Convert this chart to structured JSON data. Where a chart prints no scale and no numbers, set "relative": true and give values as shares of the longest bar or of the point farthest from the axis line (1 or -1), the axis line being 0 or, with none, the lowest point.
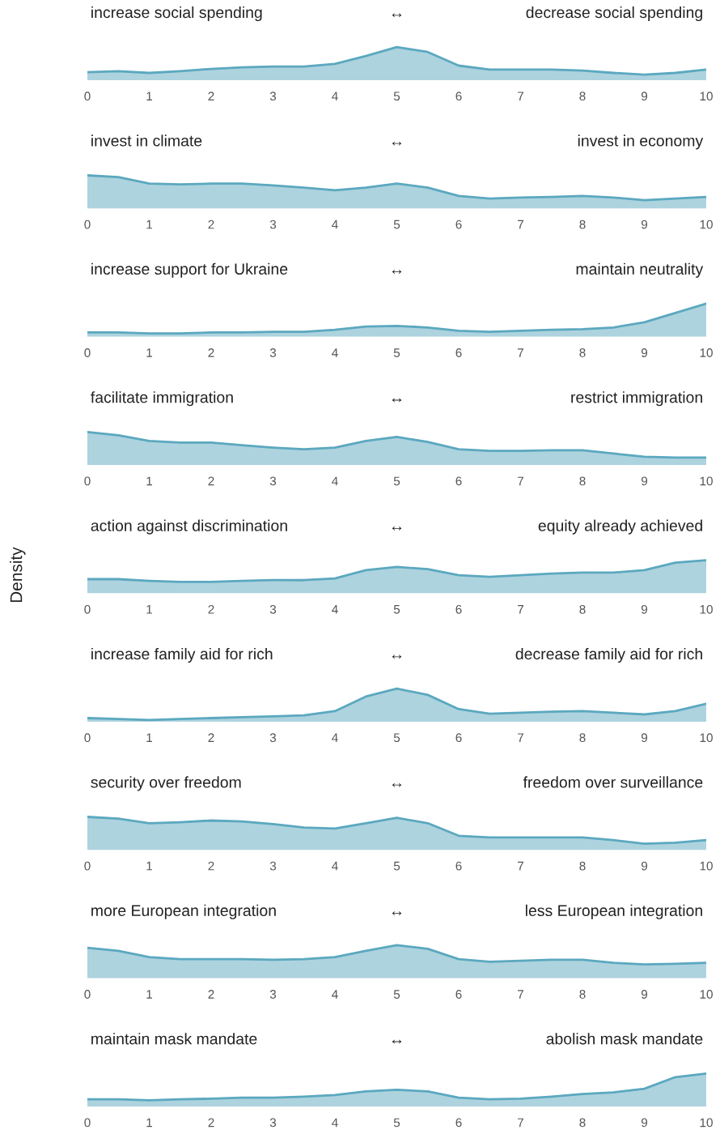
{
  "chart_data": [
    {
      "type": "area",
      "relative": true,
      "annotations": [
        "increase social spending",
        "↔",
        "decrease social spending"
      ],
      "x": [
        0,
        0.5,
        1,
        1.5,
        2,
        2.5,
        3,
        3.5,
        4,
        4.5,
        5,
        5.5,
        6,
        6.5,
        7,
        7.5,
        8,
        8.5,
        9,
        9.5,
        10
      ],
      "xlim": [
        0,
        10
      ],
      "xticks": [
        0,
        1,
        2,
        3,
        4,
        5,
        6,
        7,
        8,
        9,
        10
      ],
      "series": [
        {
          "color": "#5ba8bf",
          "values": [
            0.24,
            0.27,
            0.22,
            0.27,
            0.34,
            0.39,
            0.41,
            0.41,
            0.49,
            0.73,
            1,
            0.85,
            0.44,
            0.32,
            0.32,
            0.32,
            0.29,
            0.22,
            0.17,
            0.22,
            0.32
          ]
        }
      ]
    },
    {
      "type": "area",
      "relative": true,
      "annotations": [
        "invest in climate",
        "↔",
        "invest in economy"
      ],
      "x": [
        0,
        0.5,
        1,
        1.5,
        2,
        2.5,
        3,
        3.5,
        4,
        4.5,
        5,
        5.5,
        6,
        6.5,
        7,
        7.5,
        8,
        8.5,
        9,
        9.5,
        10
      ],
      "xlim": [
        0,
        10
      ],
      "xticks": [
        0,
        1,
        2,
        3,
        4,
        5,
        6,
        7,
        8,
        9,
        10
      ],
      "series": [
        {
          "color": "#5ba8bf",
          "values": [
            1,
            0.95,
            0.75,
            0.73,
            0.75,
            0.75,
            0.7,
            0.63,
            0.55,
            0.63,
            0.75,
            0.63,
            0.38,
            0.3,
            0.33,
            0.35,
            0.38,
            0.33,
            0.25,
            0.3,
            0.35
          ]
        }
      ]
    },
    {
      "type": "area",
      "relative": true,
      "annotations": [
        "increase support for Ukraine",
        "↔",
        "maintain neutrality"
      ],
      "x": [
        0,
        0.5,
        1,
        1.5,
        2,
        2.5,
        3,
        3.5,
        4,
        4.5,
        5,
        5.5,
        6,
        6.5,
        7,
        7.5,
        8,
        8.5,
        9,
        9.5,
        10
      ],
      "xlim": [
        0,
        10
      ],
      "xticks": [
        0,
        1,
        2,
        3,
        4,
        5,
        6,
        7,
        8,
        9,
        10
      ],
      "series": [
        {
          "color": "#5ba8bf",
          "values": [
            0.13,
            0.13,
            0.1,
            0.1,
            0.13,
            0.13,
            0.15,
            0.15,
            0.21,
            0.31,
            0.33,
            0.28,
            0.18,
            0.15,
            0.18,
            0.21,
            0.23,
            0.28,
            0.44,
            0.72,
            1
          ]
        }
      ]
    },
    {
      "type": "area",
      "relative": true,
      "annotations": [
        "facilitate immigration",
        "↔",
        "restrict immigration"
      ],
      "x": [
        0,
        0.5,
        1,
        1.5,
        2,
        2.5,
        3,
        3.5,
        4,
        4.5,
        5,
        5.5,
        6,
        6.5,
        7,
        7.5,
        8,
        8.5,
        9,
        9.5,
        10
      ],
      "xlim": [
        0,
        10
      ],
      "xticks": [
        0,
        1,
        2,
        3,
        4,
        5,
        6,
        7,
        8,
        9,
        10
      ],
      "series": [
        {
          "color": "#5ba8bf",
          "values": [
            1,
            0.9,
            0.73,
            0.68,
            0.68,
            0.6,
            0.53,
            0.48,
            0.53,
            0.73,
            0.85,
            0.7,
            0.48,
            0.43,
            0.43,
            0.45,
            0.45,
            0.35,
            0.25,
            0.23,
            0.23
          ]
        }
      ]
    },
    {
      "type": "area",
      "relative": true,
      "ylabel": "Density",
      "annotations": [
        "action against discrimination",
        "↔",
        "equity already achieved"
      ],
      "x": [
        0,
        0.5,
        1,
        1.5,
        2,
        2.5,
        3,
        3.5,
        4,
        4.5,
        5,
        5.5,
        6,
        6.5,
        7,
        7.5,
        8,
        8.5,
        9,
        9.5,
        10
      ],
      "xlim": [
        0,
        10
      ],
      "xticks": [
        0,
        1,
        2,
        3,
        4,
        5,
        6,
        7,
        8,
        9,
        10
      ],
      "series": [
        {
          "color": "#5ba8bf",
          "values": [
            0.43,
            0.43,
            0.38,
            0.35,
            0.35,
            0.38,
            0.4,
            0.4,
            0.45,
            0.7,
            0.8,
            0.73,
            0.55,
            0.5,
            0.55,
            0.6,
            0.63,
            0.63,
            0.7,
            0.93,
            1
          ]
        }
      ]
    },
    {
      "type": "area",
      "relative": true,
      "annotations": [
        "increase family aid for rich",
        "↔",
        "decrease family aid for rich"
      ],
      "x": [
        0,
        0.5,
        1,
        1.5,
        2,
        2.5,
        3,
        3.5,
        4,
        4.5,
        5,
        5.5,
        6,
        6.5,
        7,
        7.5,
        8,
        8.5,
        9,
        9.5,
        10
      ],
      "xlim": [
        0,
        10
      ],
      "xticks": [
        0,
        1,
        2,
        3,
        4,
        5,
        6,
        7,
        8,
        9,
        10
      ],
      "series": [
        {
          "color": "#5ba8bf",
          "values": [
            0.11,
            0.08,
            0.05,
            0.08,
            0.11,
            0.14,
            0.16,
            0.19,
            0.32,
            0.76,
            1,
            0.81,
            0.38,
            0.24,
            0.27,
            0.3,
            0.32,
            0.27,
            0.22,
            0.32,
            0.54
          ]
        }
      ]
    },
    {
      "type": "area",
      "relative": true,
      "annotations": [
        "security over freedom",
        "↔",
        "freedom over surveillance"
      ],
      "x": [
        0,
        0.5,
        1,
        1.5,
        2,
        2.5,
        3,
        3.5,
        4,
        4.5,
        5,
        5.5,
        6,
        6.5,
        7,
        7.5,
        8,
        8.5,
        9,
        9.5,
        10
      ],
      "xlim": [
        0,
        10
      ],
      "xticks": [
        0,
        1,
        2,
        3,
        4,
        5,
        6,
        7,
        8,
        9,
        10
      ],
      "series": [
        {
          "color": "#5ba8bf",
          "values": [
            1,
            0.95,
            0.81,
            0.84,
            0.89,
            0.86,
            0.78,
            0.68,
            0.65,
            0.81,
            0.97,
            0.81,
            0.43,
            0.38,
            0.38,
            0.38,
            0.38,
            0.3,
            0.19,
            0.22,
            0.3
          ]
        }
      ]
    },
    {
      "type": "area",
      "relative": true,
      "annotations": [
        "more European integration",
        "↔",
        "less European integration"
      ],
      "x": [
        0,
        0.5,
        1,
        1.5,
        2,
        2.5,
        3,
        3.5,
        4,
        4.5,
        5,
        5.5,
        6,
        6.5,
        7,
        7.5,
        8,
        8.5,
        9,
        9.5,
        10
      ],
      "xlim": [
        0,
        10
      ],
      "xticks": [
        0,
        1,
        2,
        3,
        4,
        5,
        6,
        7,
        8,
        9,
        10
      ],
      "series": [
        {
          "color": "#5ba8bf",
          "values": [
            0.92,
            0.83,
            0.64,
            0.58,
            0.58,
            0.58,
            0.56,
            0.58,
            0.64,
            0.83,
            1,
            0.89,
            0.58,
            0.5,
            0.53,
            0.56,
            0.56,
            0.47,
            0.42,
            0.44,
            0.47
          ]
        }
      ]
    },
    {
      "type": "area",
      "relative": true,
      "annotations": [
        "maintain mask mandate",
        "↔",
        "abolish mask mandate"
      ],
      "x": [
        0,
        0.5,
        1,
        1.5,
        2,
        2.5,
        3,
        3.5,
        4,
        4.5,
        5,
        5.5,
        6,
        6.5,
        7,
        7.5,
        8,
        8.5,
        9,
        9.5,
        10
      ],
      "xlim": [
        0,
        10
      ],
      "xticks": [
        0,
        1,
        2,
        3,
        4,
        5,
        6,
        7,
        8,
        9,
        10
      ],
      "series": [
        {
          "color": "#5ba8bf",
          "values": [
            0.22,
            0.22,
            0.19,
            0.22,
            0.24,
            0.27,
            0.27,
            0.3,
            0.35,
            0.46,
            0.51,
            0.46,
            0.27,
            0.22,
            0.24,
            0.3,
            0.38,
            0.43,
            0.54,
            0.89,
            1
          ]
        }
      ]
    }
  ]
}
